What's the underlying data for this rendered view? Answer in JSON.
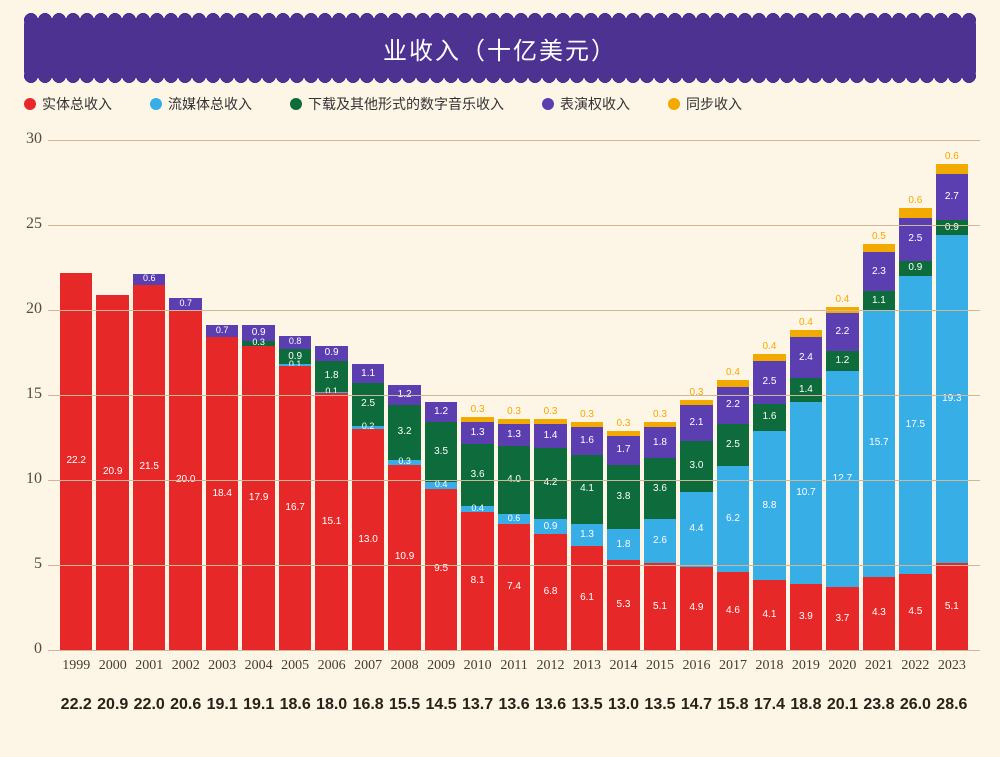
{
  "title": "业收入（十亿美元）",
  "legend": [
    {
      "label": "实体总收入",
      "color": "#e62828"
    },
    {
      "label": "流媒体总收入",
      "color": "#37aee6"
    },
    {
      "label": "下载及其他形式的数字音乐收入",
      "color": "#0e6b3b"
    },
    {
      "label": "表演权收入",
      "color": "#5b3fb0"
    },
    {
      "label": "同步收入",
      "color": "#f2a900"
    }
  ],
  "chart": {
    "type": "stacked-bar",
    "ylim": [
      0,
      30
    ],
    "ytick_step": 5,
    "yticks": [
      0,
      5,
      10,
      15,
      20,
      25,
      30
    ],
    "grid_color": "#cdb89a",
    "background_color": "#fdf5e6",
    "series_colors": {
      "physical": "#e62828",
      "streaming": "#37aee6",
      "download": "#0e6b3b",
      "performance": "#5b3fb0",
      "sync": "#f2a900"
    },
    "label_colors": {
      "physical": "#ffffff",
      "streaming": "#ffffff",
      "download": "#ffffff",
      "performance": "#ffffff",
      "sync": "#f2a900"
    },
    "years": [
      {
        "y": "1999",
        "total": "22.2",
        "seg": {
          "physical": 22.2
        }
      },
      {
        "y": "2000",
        "total": "20.9",
        "seg": {
          "physical": 20.9
        }
      },
      {
        "y": "2001",
        "total": "22.0",
        "seg": {
          "physical": 21.5,
          "performance": 0.6
        },
        "labels": {
          "physical": "21.5",
          "performance": "0.6"
        }
      },
      {
        "y": "2002",
        "total": "20.6",
        "seg": {
          "physical": 20.0,
          "performance": 0.7
        },
        "labels": {
          "physical": "20.0",
          "performance": "0.7"
        }
      },
      {
        "y": "2003",
        "total": "19.1",
        "seg": {
          "physical": 18.4,
          "performance": 0.7
        },
        "labels": {
          "physical": "18.4",
          "performance": "0.7"
        }
      },
      {
        "y": "2004",
        "total": "19.1",
        "seg": {
          "physical": 17.9,
          "download": 0.3,
          "performance": 0.9
        },
        "labels": {
          "physical": "17.9",
          "download": "0.3",
          "performance": "0.9"
        }
      },
      {
        "y": "2005",
        "total": "18.6",
        "seg": {
          "physical": 16.7,
          "streaming": 0.1,
          "download": 0.9,
          "performance": 0.8
        },
        "labels": {
          "physical": "16.7",
          "streaming": "0.1",
          "download": "0.9",
          "performance": "0.8"
        }
      },
      {
        "y": "2006",
        "total": "18.0",
        "seg": {
          "physical": 15.1,
          "streaming": 0.1,
          "download": 1.8,
          "performance": 0.9
        },
        "labels": {
          "physical": "15.1",
          "streaming": "0.1",
          "download": "1.8",
          "performance": "0.9"
        }
      },
      {
        "y": "2007",
        "total": "16.8",
        "seg": {
          "physical": 13.0,
          "streaming": 0.2,
          "download": 2.5,
          "performance": 1.1
        },
        "labels": {
          "physical": "13.0",
          "streaming": "0.2",
          "download": "2.5",
          "performance": "1.1"
        }
      },
      {
        "y": "2008",
        "total": "15.5",
        "seg": {
          "physical": 10.9,
          "streaming": 0.3,
          "download": 3.2,
          "performance": 1.2
        },
        "labels": {
          "physical": "10.9",
          "streaming": "0.3",
          "download": "3.2",
          "performance": "1.2"
        }
      },
      {
        "y": "2009",
        "total": "14.5",
        "seg": {
          "physical": 9.5,
          "streaming": 0.4,
          "download": 3.5,
          "performance": 1.2
        },
        "labels": {
          "physical": "9.5",
          "streaming": "0.4",
          "download": "3.5",
          "performance": "1.2"
        }
      },
      {
        "y": "2010",
        "total": "13.7",
        "seg": {
          "physical": 8.1,
          "streaming": 0.4,
          "download": 3.6,
          "performance": 1.3,
          "sync": 0.3
        },
        "labels": {
          "physical": "8.1",
          "streaming": "0.4",
          "download": "3.6",
          "performance": "1.3",
          "sync": "0.3"
        }
      },
      {
        "y": "2011",
        "total": "13.6",
        "seg": {
          "physical": 7.4,
          "streaming": 0.6,
          "download": 4.0,
          "performance": 1.3,
          "sync": 0.3
        },
        "labels": {
          "physical": "7.4",
          "streaming": "0.6",
          "download": "4.0",
          "performance": "1.3",
          "sync": "0.3"
        }
      },
      {
        "y": "2012",
        "total": "13.6",
        "seg": {
          "physical": 6.8,
          "streaming": 0.9,
          "download": 4.2,
          "performance": 1.4,
          "sync": 0.3
        },
        "labels": {
          "physical": "6.8",
          "streaming": "0.9",
          "download": "4.2",
          "performance": "1.4",
          "sync": "0.3"
        }
      },
      {
        "y": "2013",
        "total": "13.5",
        "seg": {
          "physical": 6.1,
          "streaming": 1.3,
          "download": 4.1,
          "performance": 1.6,
          "sync": 0.3
        },
        "labels": {
          "physical": "6.1",
          "streaming": "1.3",
          "download": "4.1",
          "performance": "1.6",
          "sync": "0.3"
        }
      },
      {
        "y": "2014",
        "total": "13.0",
        "seg": {
          "physical": 5.3,
          "streaming": 1.8,
          "download": 3.8,
          "performance": 1.7,
          "sync": 0.3
        },
        "labels": {
          "physical": "5.3",
          "streaming": "1.8",
          "download": "3.8",
          "performance": "1.7",
          "sync": "0.3"
        }
      },
      {
        "y": "2015",
        "total": "13.5",
        "seg": {
          "physical": 5.1,
          "streaming": 2.6,
          "download": 3.6,
          "performance": 1.8,
          "sync": 0.3
        },
        "labels": {
          "physical": "5.1",
          "streaming": "2.6",
          "download": "3.6",
          "performance": "1.8",
          "sync": "0.3"
        }
      },
      {
        "y": "2016",
        "total": "14.7",
        "seg": {
          "physical": 4.9,
          "streaming": 4.4,
          "download": 3.0,
          "performance": 2.1,
          "sync": 0.3
        },
        "labels": {
          "physical": "4.9",
          "streaming": "4.4",
          "download": "3.0",
          "performance": "2.1",
          "sync": "0.3"
        }
      },
      {
        "y": "2017",
        "total": "15.8",
        "seg": {
          "physical": 4.6,
          "streaming": 6.2,
          "download": 2.5,
          "performance": 2.2,
          "sync": 0.4
        },
        "labels": {
          "physical": "4.6",
          "streaming": "6.2",
          "download": "2.5",
          "performance": "2.2",
          "sync": "0.4"
        }
      },
      {
        "y": "2018",
        "total": "17.4",
        "seg": {
          "physical": 4.1,
          "streaming": 8.8,
          "download": 1.6,
          "performance": 2.5,
          "sync": 0.4
        },
        "labels": {
          "physical": "4.1",
          "streaming": "8.8",
          "download": "1.6",
          "performance": "2.5",
          "sync": "0.4"
        }
      },
      {
        "y": "2019",
        "total": "18.8",
        "seg": {
          "physical": 3.9,
          "streaming": 10.7,
          "download": 1.4,
          "performance": 2.4,
          "sync": 0.4
        },
        "labels": {
          "physical": "3.9",
          "streaming": "10.7",
          "download": "1.4",
          "performance": "2.4",
          "sync": "0.4"
        }
      },
      {
        "y": "2020",
        "total": "20.1",
        "seg": {
          "physical": 3.7,
          "streaming": 12.7,
          "download": 1.2,
          "performance": 2.2,
          "sync": 0.4
        },
        "labels": {
          "physical": "3.7",
          "streaming": "12.7",
          "download": "1.2",
          "performance": "2.2",
          "sync": "0.4"
        }
      },
      {
        "y": "2021",
        "total": "23.8",
        "seg": {
          "physical": 4.3,
          "streaming": 15.7,
          "download": 1.1,
          "performance": 2.3,
          "sync": 0.5
        },
        "labels": {
          "physical": "4.3",
          "streaming": "15.7",
          "download": "1.1",
          "performance": "2.3",
          "sync": "0.5"
        }
      },
      {
        "y": "2022",
        "total": "26.0",
        "seg": {
          "physical": 4.5,
          "streaming": 17.5,
          "download": 0.9,
          "performance": 2.5,
          "sync": 0.6
        },
        "labels": {
          "physical": "4.5",
          "streaming": "17.5",
          "download": "0.9",
          "performance": "2.5",
          "sync": "0.6"
        }
      },
      {
        "y": "2023",
        "total": "28.6",
        "seg": {
          "physical": 5.1,
          "streaming": 19.3,
          "download": 0.9,
          "performance": 2.7,
          "sync": 0.6
        },
        "labels": {
          "physical": "5.1",
          "streaming": "19.3",
          "download": "0.9",
          "performance": "2.7",
          "sync": "0.6"
        }
      }
    ]
  }
}
